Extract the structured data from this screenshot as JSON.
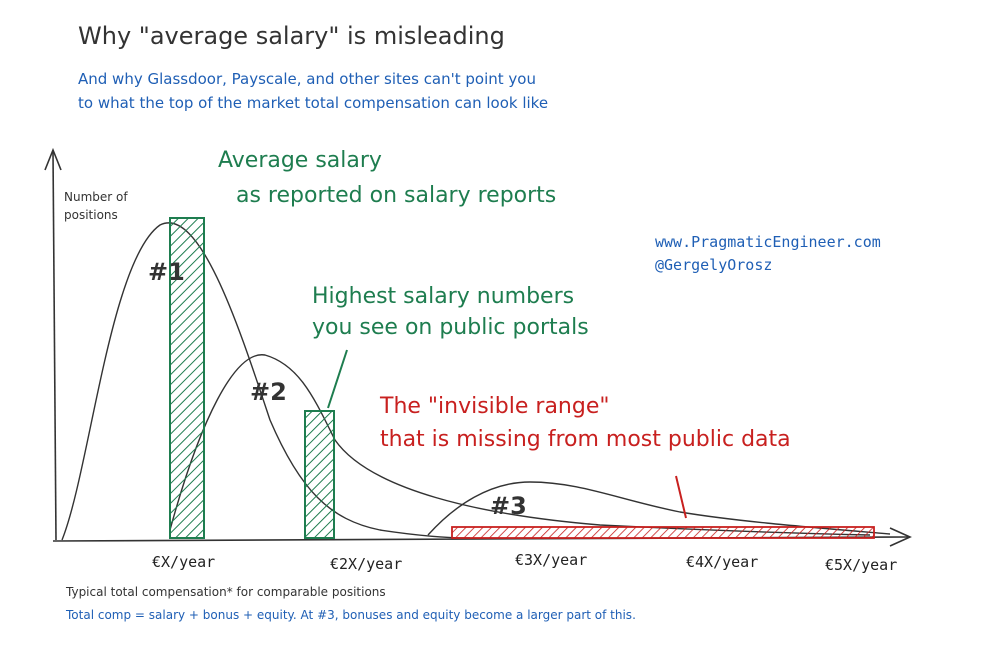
{
  "title": "Why \"average salary\" is misleading",
  "subtitle_lines": [
    "And why Glassdoor, Payscale, and other sites can't point you",
    "to what the top of the market total compensation can look like"
  ],
  "y_axis_label": [
    "Number of",
    "positions"
  ],
  "annotations": {
    "average": [
      "Average salary",
      "as reported on salary reports"
    ],
    "highest": [
      "Highest salary numbers",
      "you see on public portals"
    ],
    "invisible": [
      "The \"invisible range\"",
      "that is missing from most public data"
    ]
  },
  "credits": [
    "www.PragmaticEngineer.com",
    "@GergelyOrosz"
  ],
  "markers": [
    "#1",
    "#2",
    "#3"
  ],
  "x_ticks": [
    "€X/year",
    "€2X/year",
    "€3X/year",
    "€4X/year",
    "€5X/year"
  ],
  "footnote": "Typical total compensation* for comparable positions",
  "footnote2": "Total comp = salary + bonus + equity. At #3, bonuses and equity become a larger part of this.",
  "colors": {
    "green": "#1e7d4f",
    "red": "#c8201f",
    "blue": "#1f5fb5",
    "curve": "#333333"
  }
}
